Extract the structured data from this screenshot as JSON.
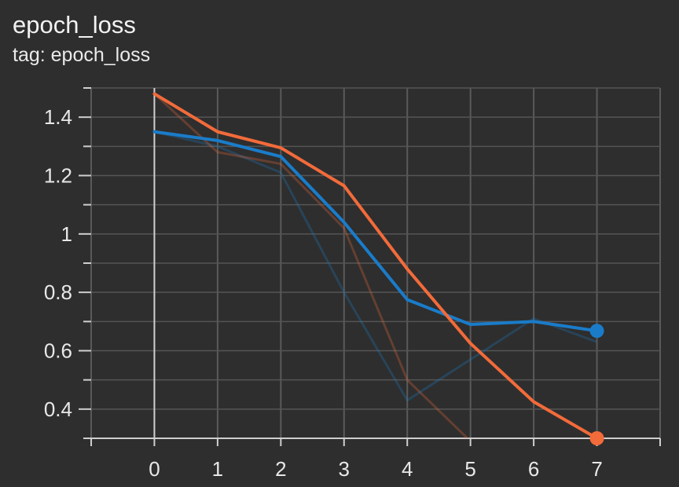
{
  "chart_data": {
    "type": "line",
    "title": "epoch_loss",
    "subtitle": "tag: epoch_loss",
    "xlabel": "",
    "ylabel": "",
    "x_ticks": [
      0,
      1,
      2,
      3,
      4,
      5,
      6,
      7
    ],
    "y_ticks": [
      0.4,
      0.6,
      0.8,
      1,
      1.2,
      1.4
    ],
    "y_tick_labels": [
      "0.4",
      "0.6",
      "0.8",
      "1",
      "1.2",
      "1.4"
    ],
    "xlim": [
      -1,
      8
    ],
    "ylim": [
      0.3,
      1.5
    ],
    "grid": true,
    "series": [
      {
        "color": "#1a7cc9",
        "smoothed": [
          1.35,
          1.32,
          1.265,
          1.04,
          0.775,
          0.69,
          0.7,
          0.668
        ],
        "raw": [
          1.35,
          1.3,
          1.21,
          0.8,
          0.43,
          0.57,
          0.71,
          0.63
        ]
      },
      {
        "color": "#f26b3a",
        "smoothed": [
          1.48,
          1.35,
          1.295,
          1.165,
          0.88,
          0.625,
          0.425,
          0.3
        ],
        "raw": [
          1.48,
          1.28,
          1.24,
          1.02,
          0.5,
          0.29,
          null,
          null
        ]
      }
    ]
  }
}
